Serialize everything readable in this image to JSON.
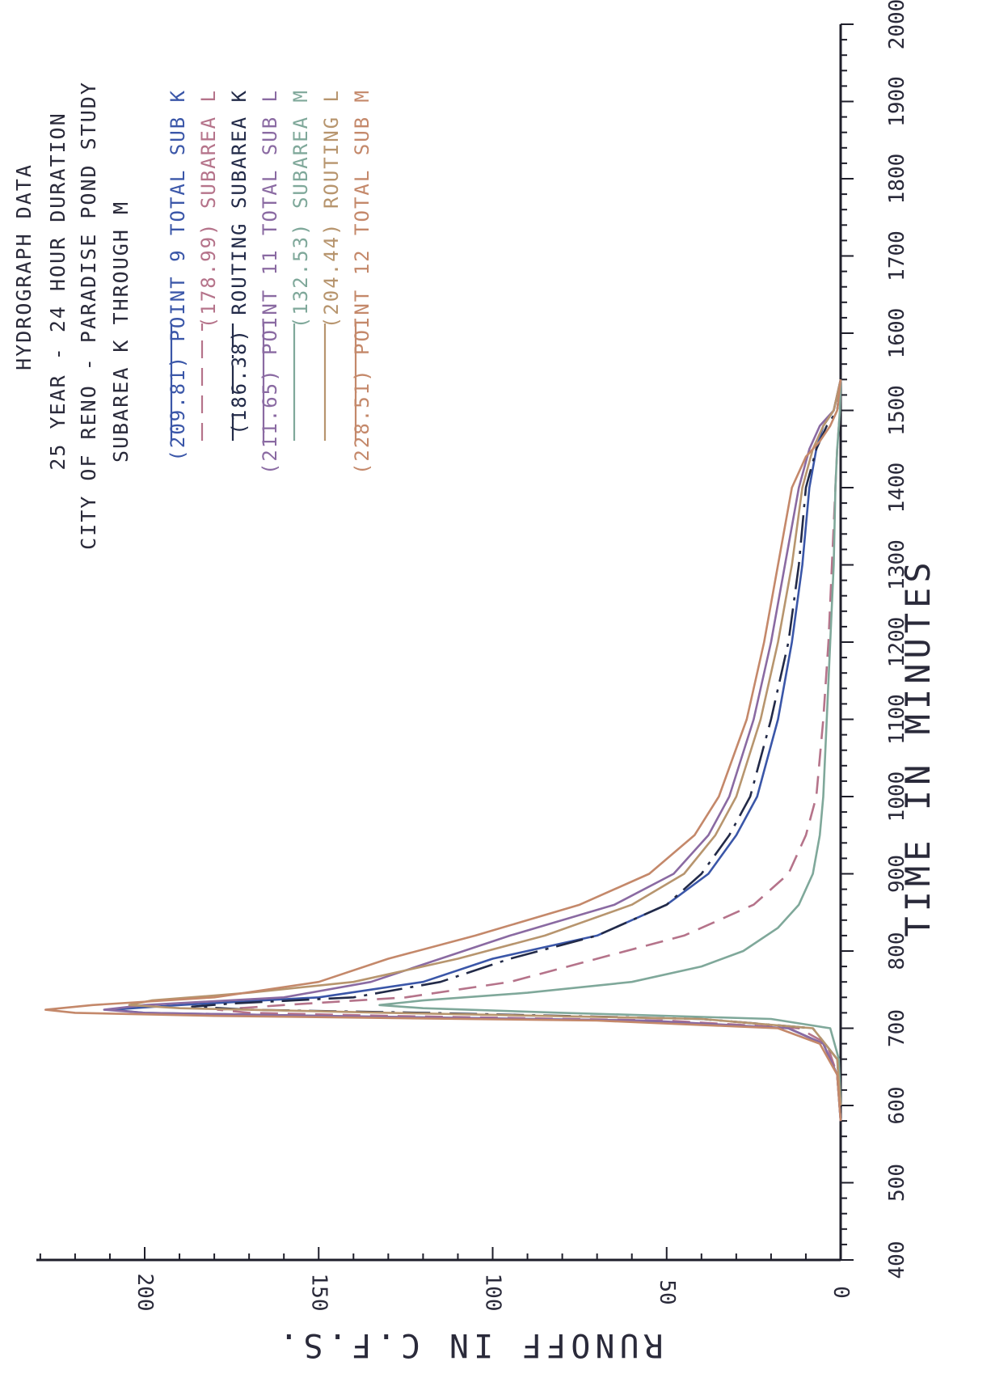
{
  "chart_data": {
    "type": "line",
    "title": "HYDROGRAPH DATA",
    "subtitle_lines": [
      "25 YEAR - 24 HOUR DURATION",
      "CITY OF RENO - PARADISE POND STUDY",
      "SUBAREA  K THROUGH M"
    ],
    "xlabel": "TIME IN MINUTES",
    "ylabel": "RUNOFF IN C.F.S.",
    "xlim": [
      400,
      2000
    ],
    "ylim": [
      0,
      230
    ],
    "x_ticks": [
      "400",
      "500",
      "600",
      "700",
      "800",
      "900",
      "1000",
      "1100",
      "1200",
      "1300",
      "1400",
      "1500",
      "1600",
      "1700",
      "1800",
      "1900",
      "2000"
    ],
    "y_ticks": [
      "0",
      "50",
      "100",
      "150",
      "200"
    ],
    "orientation": "rotated 90 degrees clockwise (time axis vertical, runoff axis horizontal)",
    "series": [
      {
        "name": "(209.81) POINT 9 TOTAL SUB K",
        "color": "#3a56a8",
        "style": "solid",
        "x": [
          580,
          640,
          680,
          700,
          710,
          716,
          720,
          724,
          730,
          740,
          760,
          790,
          820,
          860,
          900,
          950,
          1000,
          1100,
          1200,
          1300,
          1400,
          1450,
          1480,
          1500,
          1540
        ],
        "y": [
          0,
          1,
          5,
          15,
          60,
          150,
          200,
          209.81,
          190,
          150,
          120,
          100,
          70,
          50,
          38,
          30,
          24,
          18,
          14,
          11,
          9,
          7,
          5,
          2,
          0
        ]
      },
      {
        "name": "(178.99) SUBAREA L",
        "color": "#b5738a",
        "style": "dashed",
        "x": [
          580,
          640,
          680,
          700,
          710,
          716,
          720,
          724,
          730,
          740,
          760,
          790,
          820,
          860,
          900,
          950,
          1000,
          1100,
          1200,
          1300,
          1400,
          1450,
          1480,
          1500,
          1540
        ],
        "y": [
          0,
          1,
          4,
          12,
          50,
          130,
          170,
          178.99,
          160,
          125,
          95,
          70,
          45,
          25,
          15,
          10,
          7,
          5,
          3.5,
          2.5,
          1.5,
          1,
          0.5,
          0.2,
          0
        ]
      },
      {
        "name": "(186.38) ROUTING SUBAREA K",
        "color": "#222a48",
        "style": "long-dash",
        "x": [
          600,
          660,
          700,
          712,
          720,
          724,
          728,
          732,
          740,
          760,
          790,
          820,
          860,
          900,
          950,
          1000,
          1100,
          1200,
          1300,
          1400,
          1450,
          1480,
          1500,
          1540
        ],
        "y": [
          0,
          1,
          8,
          40,
          120,
          170,
          186.38,
          175,
          140,
          115,
          95,
          70,
          50,
          40,
          32,
          26,
          20,
          15,
          12,
          10,
          7,
          4,
          1,
          0
        ]
      },
      {
        "name": "(211.65) POINT 11 TOTAL SUB L",
        "color": "#8a6aa2",
        "style": "solid",
        "x": [
          580,
          640,
          680,
          700,
          710,
          716,
          720,
          724,
          730,
          740,
          760,
          790,
          820,
          860,
          900,
          950,
          1000,
          1100,
          1200,
          1300,
          1400,
          1450,
          1480,
          1500,
          1540
        ],
        "y": [
          0,
          1,
          5,
          15,
          55,
          150,
          200,
          211.65,
          200,
          160,
          135,
          115,
          95,
          65,
          48,
          38,
          32,
          25,
          20,
          16,
          12,
          9,
          6,
          2,
          0
        ]
      },
      {
        "name": "(132.53) SUBAREA M",
        "color": "#7fa89a",
        "style": "solid",
        "x": [
          600,
          660,
          700,
          712,
          720,
          726,
          730,
          736,
          746,
          760,
          780,
          800,
          830,
          860,
          900,
          950,
          1000,
          1100,
          1200,
          1300,
          1400,
          1450,
          1480,
          1500,
          1540
        ],
        "y": [
          0,
          0.5,
          3,
          20,
          80,
          120,
          132.53,
          120,
          90,
          60,
          40,
          28,
          18,
          12,
          8,
          6,
          5,
          4,
          3,
          2,
          1.5,
          1,
          0.5,
          0.2,
          0
        ]
      },
      {
        "name": "(204.44) ROUTING L",
        "color": "#b7956e",
        "style": "solid",
        "x": [
          600,
          660,
          700,
          712,
          720,
          726,
          730,
          736,
          746,
          760,
          790,
          820,
          860,
          900,
          950,
          1000,
          1100,
          1200,
          1300,
          1400,
          1450,
          1480,
          1500,
          1540
        ],
        "y": [
          0,
          1,
          8,
          40,
          130,
          190,
          204.44,
          198,
          170,
          140,
          110,
          85,
          60,
          45,
          36,
          30,
          23,
          18,
          14,
          11,
          8,
          5,
          2,
          0
        ]
      },
      {
        "name": "(228.51) POINT 12 TOTAL SUB M",
        "color": "#c4886a",
        "style": "solid",
        "x": [
          580,
          640,
          680,
          700,
          710,
          716,
          720,
          724,
          730,
          740,
          760,
          790,
          820,
          860,
          900,
          950,
          1000,
          1100,
          1200,
          1300,
          1400,
          1440,
          1460,
          1480,
          1500,
          1540
        ],
        "y": [
          0,
          1,
          6,
          18,
          70,
          180,
          220,
          228.51,
          215,
          180,
          150,
          130,
          105,
          75,
          55,
          42,
          35,
          27,
          22,
          18,
          14,
          10,
          6,
          3,
          1,
          0
        ]
      }
    ]
  }
}
